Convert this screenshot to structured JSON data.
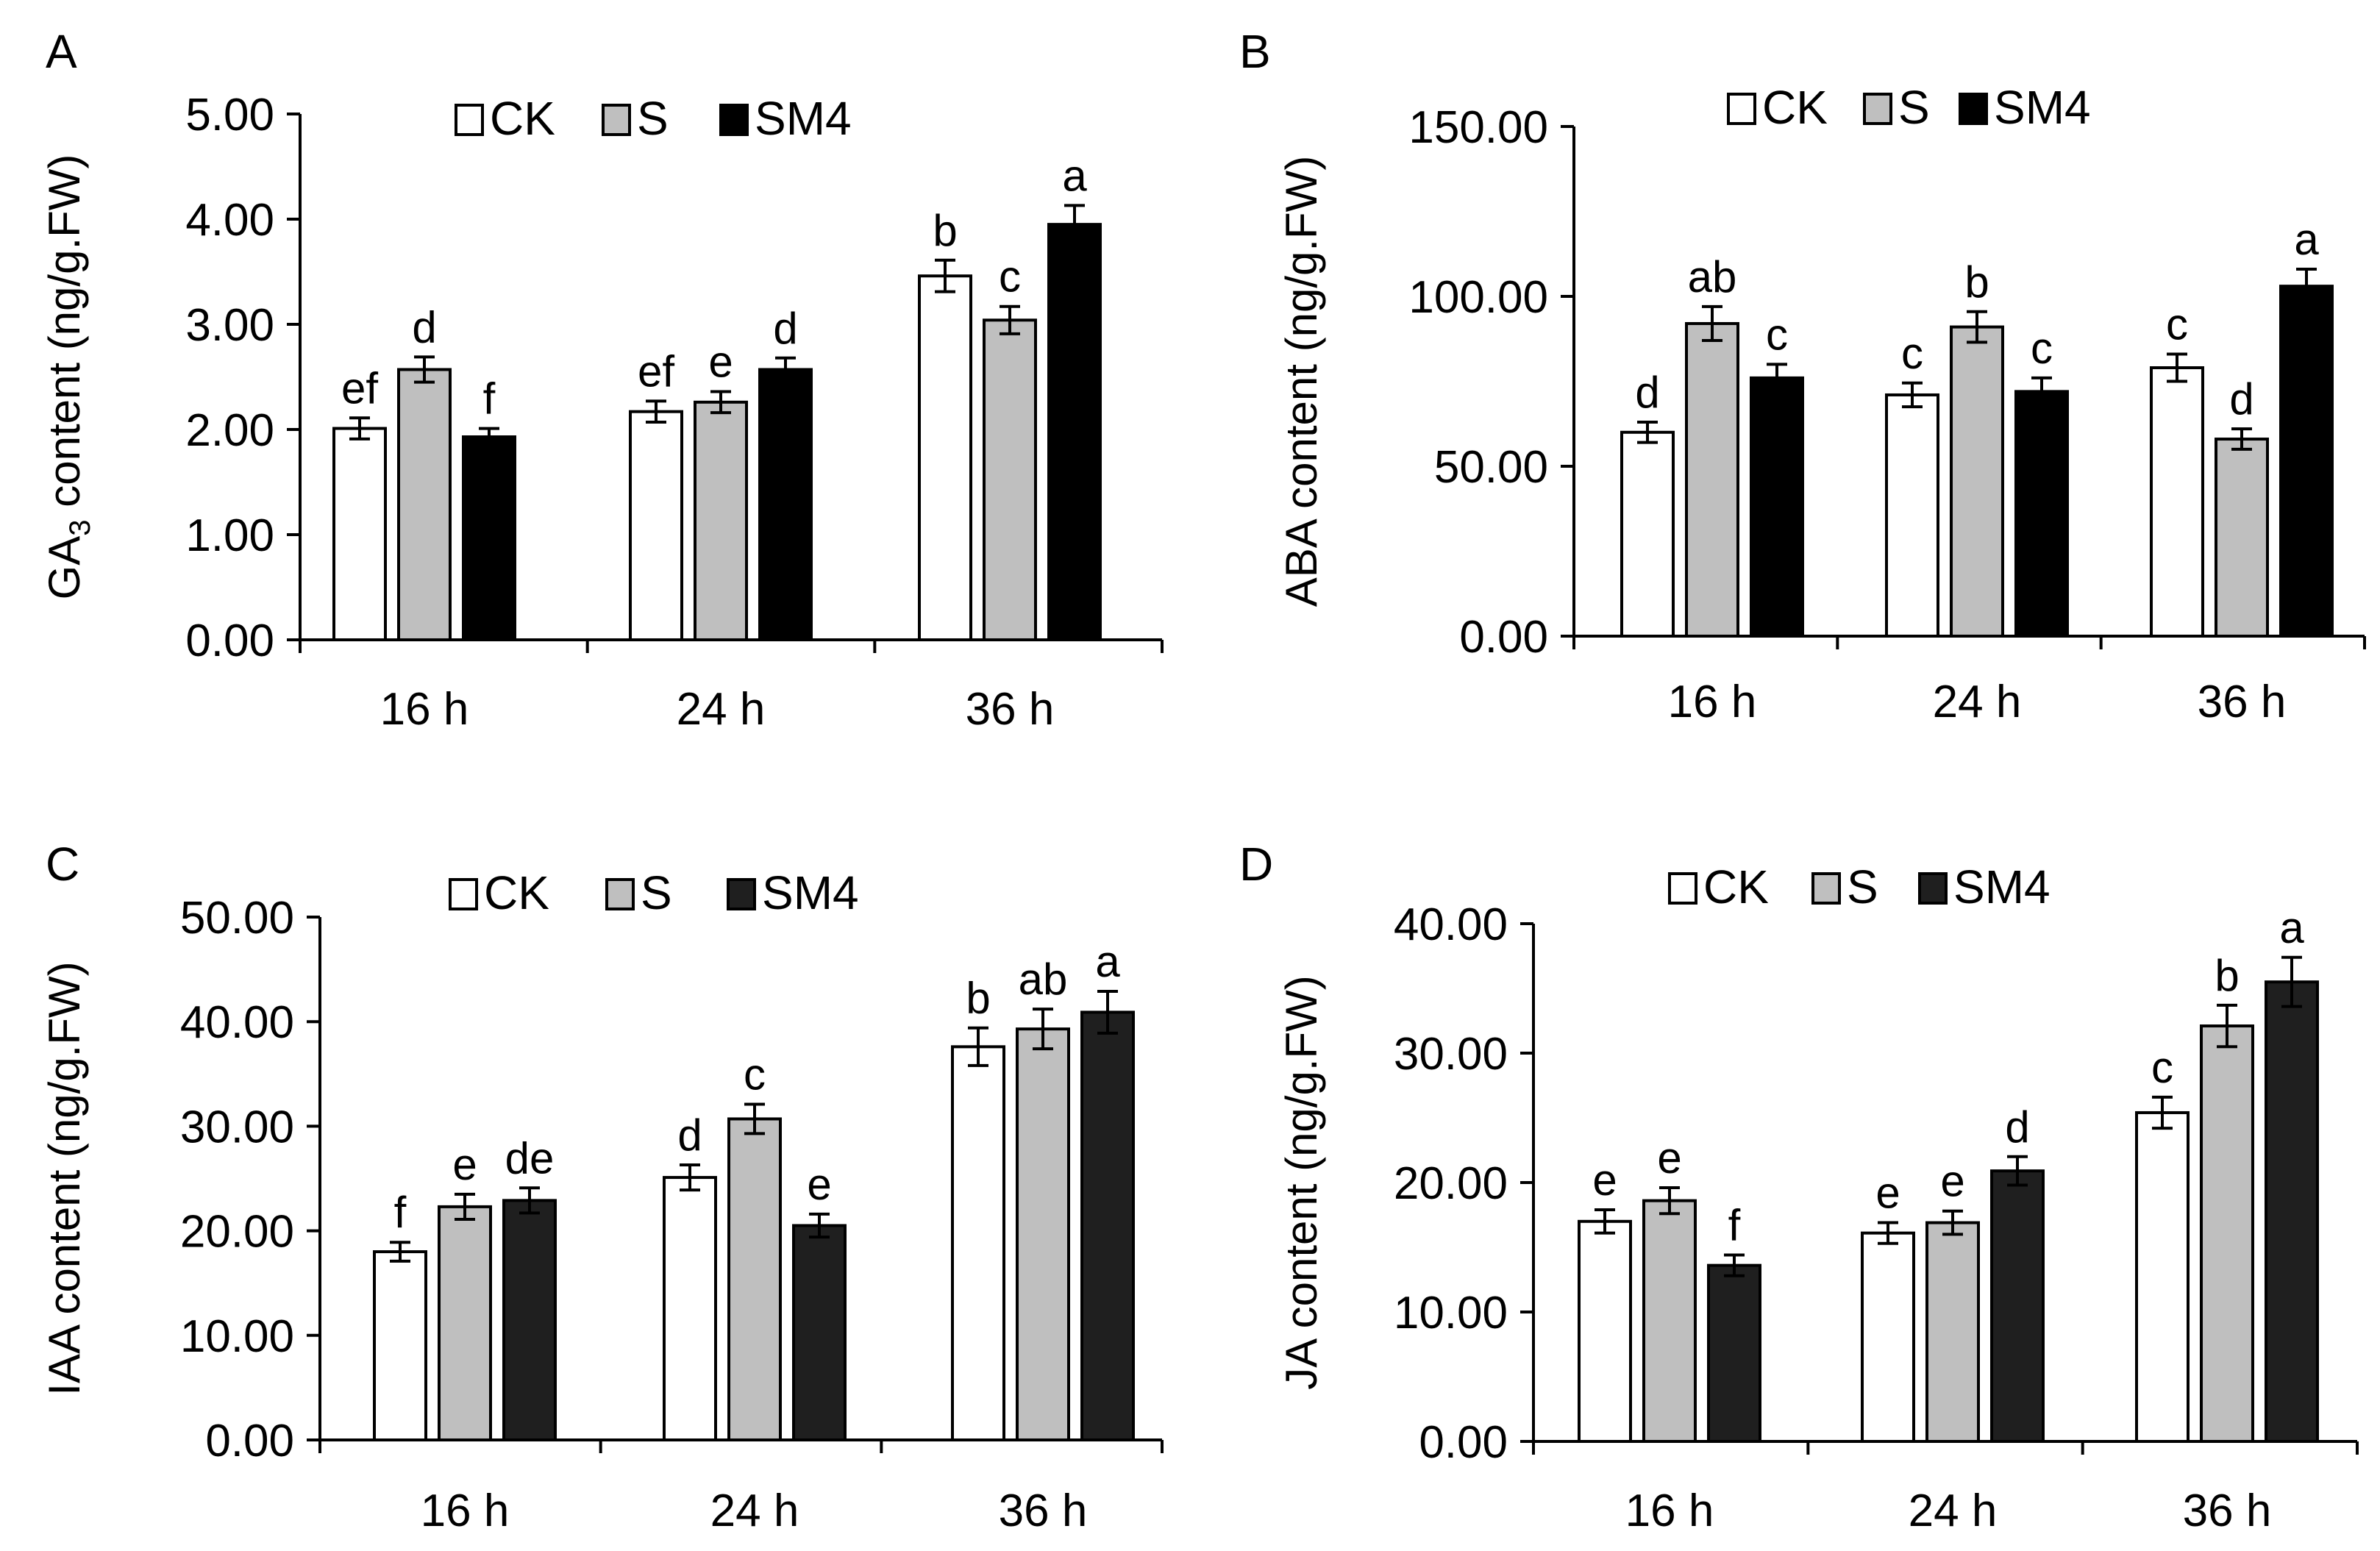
{
  "colors": {
    "CK": "#ffffff",
    "S": "#bfbfbf",
    "SM4": "#000000",
    "SM4_dark": "#1f1f1f",
    "axis": "#000000"
  },
  "chart_data": [
    {
      "panel": "A",
      "type": "bar",
      "ylabel_main": "GA",
      "ylabel_sub": "3",
      "ylabel_rest": " content (ng/g.FW)",
      "ylim": [
        0,
        5
      ],
      "yticks": [
        "0.00",
        "1.00",
        "2.00",
        "3.00",
        "4.00",
        "5.00"
      ],
      "categories": [
        "16 h",
        "24 h",
        "36 h"
      ],
      "series": [
        {
          "name": "CK",
          "values": [
            2.01,
            2.17,
            3.46
          ],
          "errors": [
            0.1,
            0.1,
            0.15
          ],
          "letters": [
            "ef",
            "ef",
            "b"
          ]
        },
        {
          "name": "S",
          "values": [
            2.57,
            2.26,
            3.04
          ],
          "errors": [
            0.12,
            0.1,
            0.13
          ],
          "letters": [
            "d",
            "e",
            "c"
          ]
        },
        {
          "name": "SM4",
          "values": [
            1.93,
            2.57,
            3.95
          ],
          "errors": [
            0.08,
            0.11,
            0.18
          ],
          "letters": [
            "f",
            "d",
            "a"
          ]
        }
      ]
    },
    {
      "panel": "B",
      "type": "bar",
      "ylabel_main": "ABA content (ng/g.FW)",
      "ylabel_sub": "",
      "ylabel_rest": "",
      "ylim": [
        0,
        150
      ],
      "yticks": [
        "0.00",
        "50.00",
        "100.00",
        "150.00"
      ],
      "categories": [
        "16 h",
        "24 h",
        "36 h"
      ],
      "series": [
        {
          "name": "CK",
          "values": [
            60,
            71,
            79
          ],
          "errors": [
            3,
            3.5,
            4
          ],
          "letters": [
            "d",
            "c",
            "c"
          ]
        },
        {
          "name": "S",
          "values": [
            92,
            91,
            58
          ],
          "errors": [
            5,
            4.5,
            3
          ],
          "letters": [
            "ab",
            "b",
            "d"
          ]
        },
        {
          "name": "SM4",
          "values": [
            76,
            72,
            103
          ],
          "errors": [
            4,
            4,
            5
          ],
          "letters": [
            "c",
            "c",
            "a"
          ]
        }
      ]
    },
    {
      "panel": "C",
      "type": "bar",
      "ylabel_main": "IAA content (ng/g.FW)",
      "ylabel_sub": "",
      "ylabel_rest": "",
      "ylim": [
        0,
        50
      ],
      "yticks": [
        "0.00",
        "10.00",
        "20.00",
        "30.00",
        "40.00",
        "50.00"
      ],
      "categories": [
        "16 h",
        "24 h",
        "36 h"
      ],
      "series": [
        {
          "name": "CK",
          "values": [
            18,
            25.1,
            37.6
          ],
          "errors": [
            0.9,
            1.2,
            1.8
          ],
          "letters": [
            "f",
            "d",
            "b"
          ]
        },
        {
          "name": "S",
          "values": [
            22.3,
            30.7,
            39.3
          ],
          "errors": [
            1.2,
            1.4,
            1.9
          ],
          "letters": [
            "e",
            "c",
            "ab"
          ]
        },
        {
          "name": "SM4",
          "values": [
            22.9,
            20.5,
            40.9
          ],
          "errors": [
            1.2,
            1.1,
            2.0
          ],
          "letters": [
            "de",
            "e",
            "a"
          ]
        }
      ]
    },
    {
      "panel": "D",
      "type": "bar",
      "ylabel_main": "JA content (ng/g.FW)",
      "ylabel_sub": "",
      "ylabel_rest": "",
      "ylim": [
        0,
        40
      ],
      "yticks": [
        "0.00",
        "10.00",
        "20.00",
        "30.00",
        "40.00"
      ],
      "categories": [
        "16 h",
        "24 h",
        "36 h"
      ],
      "series": [
        {
          "name": "CK",
          "values": [
            17,
            16.1,
            25.4
          ],
          "errors": [
            0.9,
            0.8,
            1.2
          ],
          "letters": [
            "e",
            "e",
            "c"
          ]
        },
        {
          "name": "S",
          "values": [
            18.6,
            16.9,
            32.1
          ],
          "errors": [
            1.0,
            0.9,
            1.6
          ],
          "letters": [
            "e",
            "e",
            "b"
          ]
        },
        {
          "name": "SM4",
          "values": [
            13.6,
            20.9,
            35.5
          ],
          "errors": [
            0.8,
            1.1,
            1.9
          ],
          "letters": [
            "f",
            "d",
            "a"
          ]
        }
      ]
    }
  ]
}
